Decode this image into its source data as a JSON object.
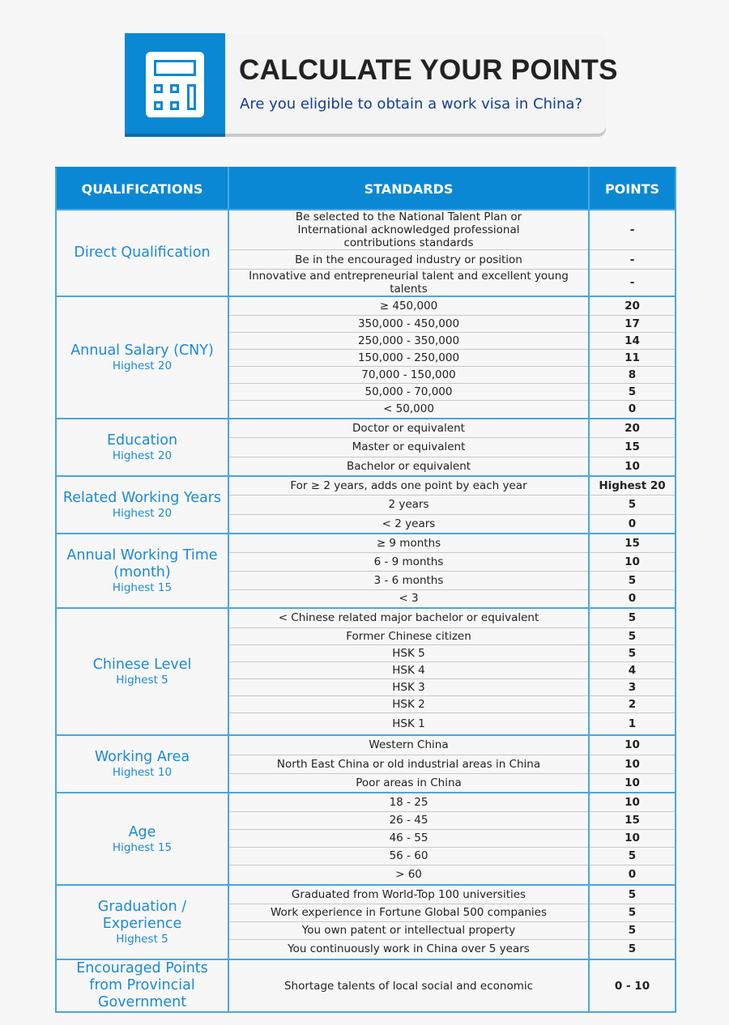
{
  "header": {
    "icon": "calculator-icon",
    "title": "CALCULATE YOUR POINTS",
    "subtitle": "Are you eligible to obtain a work visa in China?"
  },
  "colors": {
    "accent": "#0a88d4",
    "qualification_text": "#1b8ad8",
    "subtitle_text": "#123f94"
  },
  "table": {
    "columns": [
      "QUALIFICATIONS",
      "STANDARDS",
      "POINTS"
    ],
    "sections": [
      {
        "name": "Direct Qualification",
        "highest": "",
        "rows": [
          {
            "standard": "Be selected to the National Talent Plan or International acknowledged professional contributions standards",
            "points": "-"
          },
          {
            "standard": "Be in the encouraged industry or position",
            "points": "-"
          },
          {
            "standard": "Innovative and entrepreneurial talent and excellent young talents",
            "points": "-"
          }
        ]
      },
      {
        "name": "Annual Salary (CNY)",
        "highest": "Highest 20",
        "rows": [
          {
            "standard": "≥ 450,000",
            "points": "20"
          },
          {
            "standard": "350,000 - 450,000",
            "points": "17"
          },
          {
            "standard": "250,000 - 350,000",
            "points": "14"
          },
          {
            "standard": "150,000 - 250,000",
            "points": "11"
          },
          {
            "standard": "70,000 - 150,000",
            "points": "8"
          },
          {
            "standard": "50,000 - 70,000",
            "points": "5"
          },
          {
            "standard": "< 50,000",
            "points": "0"
          }
        ]
      },
      {
        "name": "Education",
        "highest": "Highest 20",
        "rows": [
          {
            "standard": "Doctor or equivalent",
            "points": "20"
          },
          {
            "standard": "Master or equivalent",
            "points": "15"
          },
          {
            "standard": "Bachelor or equivalent",
            "points": "10"
          }
        ]
      },
      {
        "name": "Related Working Years",
        "highest": "Highest 20",
        "rows": [
          {
            "standard": "For ≥ 2 years, adds one point by each year",
            "points": "Highest 20"
          },
          {
            "standard": "2 years",
            "points": "5"
          },
          {
            "standard": "< 2 years",
            "points": "0"
          }
        ]
      },
      {
        "name": "Annual Working Time (month)",
        "highest": "Highest 15",
        "rows": [
          {
            "standard": "≥ 9 months",
            "points": "15"
          },
          {
            "standard": "6 - 9 months",
            "points": "10"
          },
          {
            "standard": "3 - 6 months",
            "points": "5"
          },
          {
            "standard": "< 3",
            "points": "0"
          }
        ]
      },
      {
        "name": "Chinese Level",
        "highest": "Highest 5",
        "rows": [
          {
            "standard": "< Chinese related major bachelor or equivalent",
            "points": "5"
          },
          {
            "standard": "Former Chinese citizen",
            "points": "5"
          },
          {
            "standard": "HSK 5",
            "points": "5"
          },
          {
            "standard": "HSK 4",
            "points": "4"
          },
          {
            "standard": "HSK 3",
            "points": "3"
          },
          {
            "standard": "HSK 2",
            "points": "2"
          },
          {
            "standard": "HSK 1",
            "points": "1"
          }
        ]
      },
      {
        "name": "Working Area",
        "highest": "Highest 10",
        "rows": [
          {
            "standard": "Western China",
            "points": "10"
          },
          {
            "standard": "North East China or old industrial areas in China",
            "points": "10"
          },
          {
            "standard": "Poor areas in China",
            "points": "10"
          }
        ]
      },
      {
        "name": "Age",
        "highest": "Highest 15",
        "rows": [
          {
            "standard": "18 - 25",
            "points": "10"
          },
          {
            "standard": "26 - 45",
            "points": "15"
          },
          {
            "standard": "46 - 55",
            "points": "10"
          },
          {
            "standard": "56 - 60",
            "points": "5"
          },
          {
            "standard": "> 60",
            "points": "0"
          }
        ]
      },
      {
        "name": "Graduation / Experience",
        "highest": "Highest 5",
        "rows": [
          {
            "standard": "Graduated from World-Top 100 universities",
            "points": "5"
          },
          {
            "standard": "Work experience in Fortune Global 500 companies",
            "points": "5"
          },
          {
            "standard": "You own patent or intellectual property",
            "points": "5"
          },
          {
            "standard": "You continuously work in China over 5 years",
            "points": "5"
          }
        ]
      },
      {
        "name": "Encouraged Points from Provincial Government",
        "highest": "",
        "rows": [
          {
            "standard": "Shortage talents of local social and economic",
            "points": "0 - 10"
          }
        ]
      }
    ]
  }
}
